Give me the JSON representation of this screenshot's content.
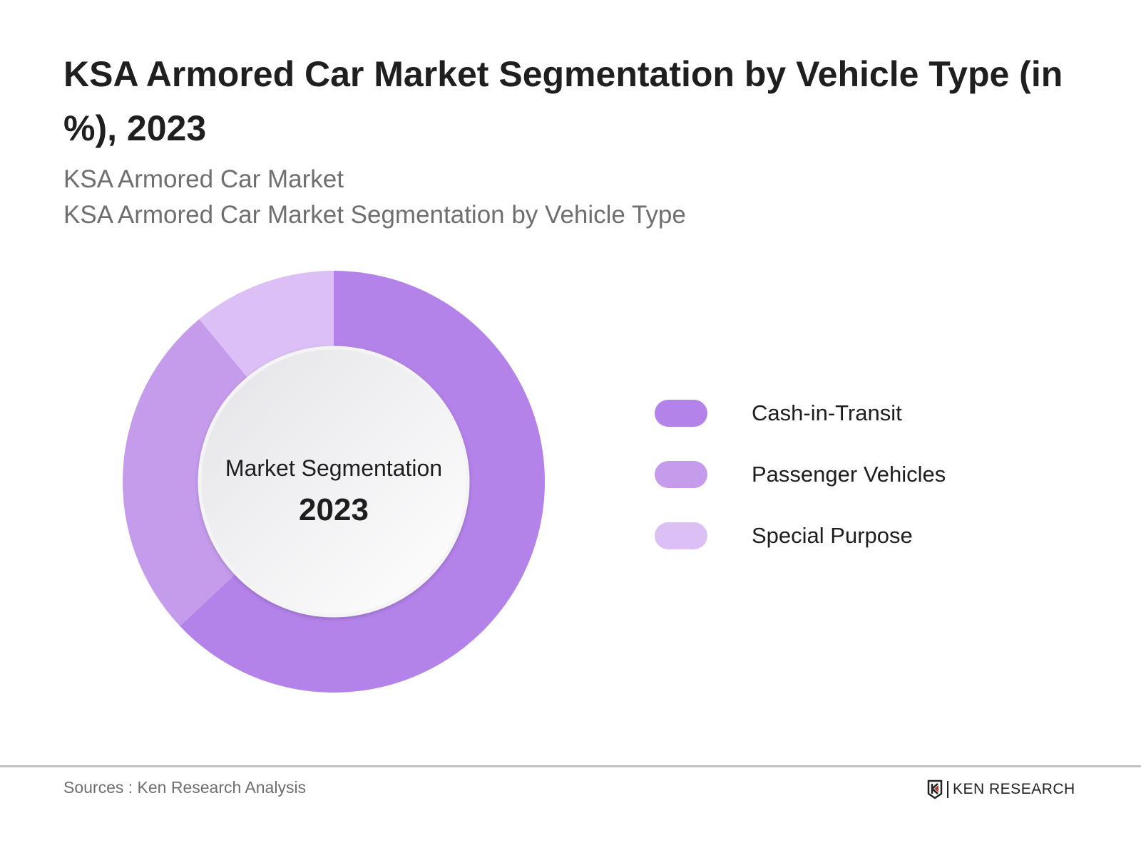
{
  "title": "KSA Armored Car Market Segmentation by Vehicle Type (in %), 2023",
  "subtitle_lines": [
    "KSA Armored Car Market",
    "KSA Armored Car Market Segmentation by Vehicle Type"
  ],
  "chart_data": {
    "type": "pie",
    "variant": "donut",
    "center_label": "Market Segmentation",
    "center_year": "2023",
    "categories": [
      "Cash-in-Transit",
      "Passenger Vehicles",
      "Special Purpose"
    ],
    "values": [
      63,
      26,
      11
    ],
    "colors": [
      "#b383e9",
      "#c59cec",
      "#dcc0f5"
    ],
    "start": "top",
    "direction": "clockwise",
    "legend_position": "right"
  },
  "footer": {
    "source": "Sources : Ken Research Analysis",
    "logo_text": "KEN RESEARCH"
  }
}
